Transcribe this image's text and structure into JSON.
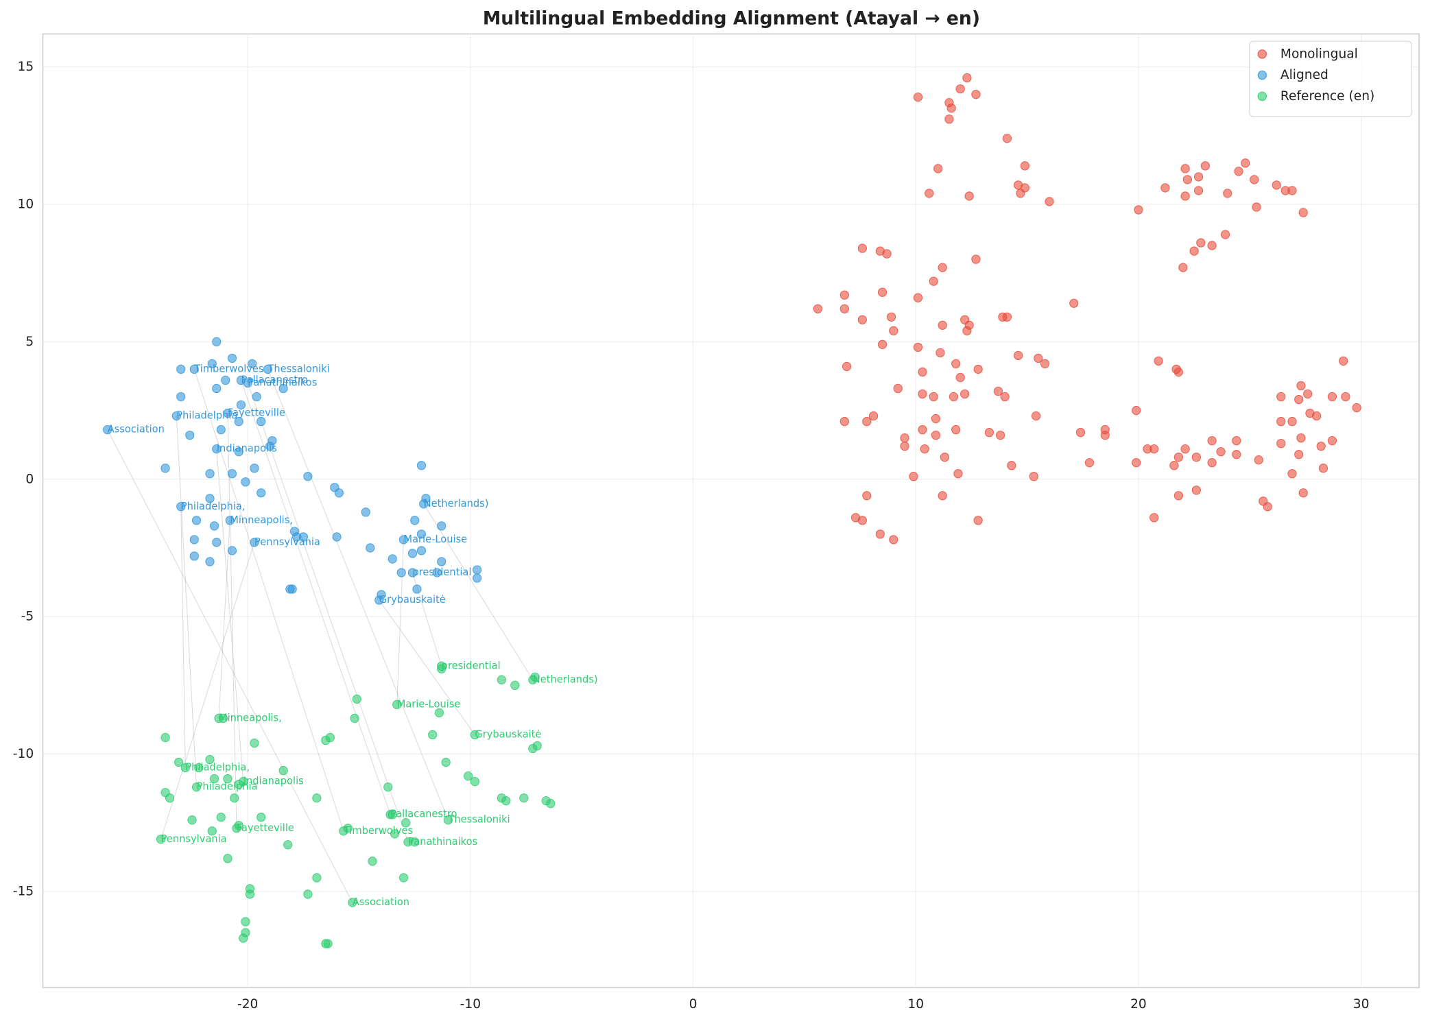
{
  "chart_data": {
    "type": "scatter",
    "title": "Multilingual Embedding Alignment (Atayal → en)",
    "xlim": [
      -29.2,
      32.6
    ],
    "ylim": [
      -18.5,
      16.2
    ],
    "xticks": [
      -20,
      -10,
      0,
      10,
      20,
      30
    ],
    "yticks": [
      15,
      10,
      5,
      0,
      -5,
      -10,
      -15
    ],
    "grid": true,
    "legend": "upper right",
    "series": [
      {
        "name": "Monolingual",
        "color": "#e74c3c",
        "x": [
          10.1,
          12.3,
          12.0,
          11.5,
          12.7,
          11.6,
          11.5,
          14.1,
          11.0,
          14.9,
          10.6,
          12.4,
          14.6,
          14.9,
          14.7,
          16.0,
          20.0,
          21.2,
          22.1,
          22.7,
          23.0,
          22.2,
          22.1,
          22.7,
          24.0,
          24.5,
          24.8,
          25.2,
          25.3,
          26.2,
          26.6,
          26.9,
          27.4,
          23.9,
          23.3,
          22.8,
          22.5,
          22.0,
          7.6,
          8.4,
          8.7,
          12.7,
          11.2,
          10.8,
          5.6,
          6.8,
          6.8,
          8.5,
          10.1,
          17.1,
          13.9,
          14.1,
          7.6,
          8.9,
          12.2,
          12.4,
          11.2,
          12.3,
          9.0,
          10.1,
          8.5,
          11.1,
          14.6,
          15.5,
          15.8,
          11.8,
          20.9,
          21.7,
          21.8,
          29.2,
          6.9,
          12.8,
          10.3,
          12.0,
          9.2,
          13.7,
          14.0,
          10.3,
          10.8,
          11.7,
          12.2,
          27.3,
          26.4,
          27.6,
          28.7,
          29.3,
          27.2,
          29.8,
          19.9,
          8.1,
          15.4,
          10.9,
          6.8,
          7.8,
          27.7,
          28.0,
          26.4,
          26.9,
          10.3,
          11.8,
          10.9,
          13.3,
          13.8,
          17.4,
          18.5,
          18.5,
          9.5,
          27.3,
          28.7,
          26.4,
          28.2,
          23.3,
          24.4,
          9.5,
          10.4,
          20.4,
          20.7,
          22.1,
          23.7,
          24.4,
          27.2,
          25.4,
          11.3,
          21.8,
          22.6,
          17.8,
          19.9,
          23.3,
          14.3,
          21.6,
          28.3,
          11.9,
          26.9,
          9.9,
          15.3,
          7.8,
          11.2,
          21.8,
          22.6,
          27.4,
          25.6,
          25.8,
          7.3,
          7.6,
          20.7,
          12.8,
          8.4,
          9.0
        ],
        "values": [
          13.9,
          14.6,
          14.2,
          13.7,
          14.0,
          13.5,
          13.1,
          12.4,
          11.3,
          11.4,
          10.4,
          10.3,
          10.7,
          10.6,
          10.4,
          10.1,
          9.8,
          10.6,
          11.3,
          11.0,
          11.4,
          10.9,
          10.3,
          10.5,
          10.4,
          11.2,
          11.5,
          10.9,
          9.9,
          10.7,
          10.5,
          10.5,
          9.7,
          8.9,
          8.5,
          8.6,
          8.3,
          7.7,
          8.4,
          8.3,
          8.2,
          8.0,
          7.7,
          7.2,
          6.2,
          6.2,
          6.7,
          6.8,
          6.6,
          6.4,
          5.9,
          5.9,
          5.8,
          5.9,
          5.8,
          5.6,
          5.6,
          5.4,
          5.4,
          4.8,
          4.9,
          4.6,
          4.5,
          4.4,
          4.2,
          4.2,
          4.3,
          4.0,
          3.9,
          4.3,
          4.1,
          4.0,
          3.9,
          3.7,
          3.3,
          3.2,
          3.0,
          3.1,
          3.0,
          3.0,
          3.1,
          3.4,
          3.0,
          3.1,
          3.0,
          3.0,
          2.9,
          2.6,
          2.5,
          2.3,
          2.3,
          2.2,
          2.1,
          2.1,
          2.4,
          2.3,
          2.1,
          2.1,
          1.8,
          1.8,
          1.6,
          1.7,
          1.6,
          1.7,
          1.8,
          1.6,
          1.5,
          1.5,
          1.4,
          1.3,
          1.2,
          1.4,
          1.4,
          1.2,
          1.1,
          1.1,
          1.1,
          1.1,
          1.0,
          0.9,
          0.9,
          0.7,
          0.8,
          0.8,
          0.8,
          0.6,
          0.6,
          0.6,
          0.5,
          0.5,
          0.4,
          0.2,
          0.2,
          0.1,
          0.1,
          -0.6,
          -0.6,
          -0.6,
          -0.4,
          -0.5,
          -0.8,
          -1.0,
          -1.4,
          -1.5,
          -1.4,
          -1.5,
          -2.0,
          -2.2
        ]
      },
      {
        "name": "Aligned",
        "color": "#3498db",
        "x": [
          -21.4,
          -20.7,
          -19.8,
          -21.6,
          -23.0,
          -22.4,
          -19.1,
          -21.0,
          -20.3,
          -20.0,
          -18.4,
          -21.4,
          -23.0,
          -19.6,
          -20.3,
          -20.9,
          -23.2,
          -20.4,
          -19.4,
          -26.3,
          -21.2,
          -22.6,
          -18.9,
          -19.0,
          -21.4,
          -20.4,
          -23.7,
          -19.7,
          -12.2,
          -21.7,
          -20.7,
          -17.3,
          -20.1,
          -16.1,
          -15.9,
          -19.4,
          -21.7,
          -12.0,
          -12.1,
          -23.0,
          -14.7,
          -22.3,
          -20.8,
          -12.5,
          -21.5,
          -11.3,
          -17.9,
          -17.8,
          -17.5,
          -16.0,
          -12.2,
          -22.4,
          -13.0,
          -21.4,
          -19.7,
          -14.5,
          -12.2,
          -20.7,
          -22.4,
          -12.6,
          -13.5,
          -21.7,
          -11.3,
          -13.1,
          -12.6,
          -11.5,
          -9.7,
          -9.7,
          -18.1,
          -18.0,
          -12.4,
          -14.0,
          -14.1
        ],
        "values": [
          5.0,
          4.4,
          4.2,
          4.2,
          4.0,
          4.0,
          4.0,
          3.6,
          3.6,
          3.5,
          3.3,
          3.3,
          3.0,
          3.0,
          2.7,
          2.4,
          2.3,
          2.1,
          2.1,
          1.8,
          1.8,
          1.6,
          1.4,
          1.2,
          1.1,
          1.0,
          0.4,
          0.4,
          0.5,
          0.2,
          0.2,
          0.1,
          -0.1,
          -0.3,
          -0.5,
          -0.5,
          -0.7,
          -0.7,
          -0.9,
          -1.0,
          -1.2,
          -1.5,
          -1.5,
          -1.5,
          -1.7,
          -1.7,
          -1.9,
          -2.1,
          -2.1,
          -2.1,
          -2.0,
          -2.2,
          -2.2,
          -2.3,
          -2.3,
          -2.5,
          -2.6,
          -2.6,
          -2.8,
          -2.7,
          -2.9,
          -3.0,
          -3.0,
          -3.4,
          -3.4,
          -3.4,
          -3.3,
          -3.6,
          -4.0,
          -4.0,
          -4.0,
          -4.2,
          -4.4
        ]
      },
      {
        "name": "Reference (en)",
        "color": "#2ecc71",
        "x": [
          -11.3,
          -11.3,
          -8.6,
          -8.0,
          -7.2,
          -7.1,
          -15.1,
          -13.3,
          -11.4,
          -15.2,
          -21.3,
          -21.1,
          -23.7,
          -16.3,
          -16.5,
          -19.7,
          -11.7,
          -9.8,
          -7.0,
          -7.2,
          -21.7,
          -23.1,
          -11.1,
          -22.8,
          -22.2,
          -18.4,
          -10.1,
          -9.8,
          -20.9,
          -21.5,
          -20.2,
          -20.4,
          -22.3,
          -23.7,
          -13.7,
          -23.5,
          -20.6,
          -16.9,
          -8.6,
          -8.4,
          -7.6,
          -6.6,
          -6.4,
          -21.2,
          -19.4,
          -13.6,
          -13.5,
          -11.0,
          -22.5,
          -20.4,
          -20.5,
          -21.6,
          -12.9,
          -15.7,
          -15.5,
          -13.4,
          -23.9,
          -12.8,
          -12.5,
          -18.2,
          -20.9,
          -14.4,
          -16.9,
          -13.0,
          -19.9,
          -19.9,
          -17.3,
          -15.3,
          -20.1,
          -20.1,
          -20.2,
          -16.5,
          -16.4
        ],
        "values": [
          -6.8,
          -6.9,
          -7.3,
          -7.5,
          -7.3,
          -7.2,
          -8.0,
          -8.2,
          -8.5,
          -8.7,
          -8.7,
          -8.7,
          -9.4,
          -9.4,
          -9.5,
          -9.6,
          -9.3,
          -9.3,
          -9.7,
          -9.8,
          -10.2,
          -10.3,
          -10.3,
          -10.5,
          -10.5,
          -10.6,
          -10.8,
          -11.0,
          -10.9,
          -10.9,
          -11.0,
          -11.1,
          -11.2,
          -11.4,
          -11.2,
          -11.6,
          -11.6,
          -11.6,
          -11.6,
          -11.7,
          -11.6,
          -11.7,
          -11.8,
          -12.3,
          -12.3,
          -12.2,
          -12.2,
          -12.4,
          -12.4,
          -12.6,
          -12.7,
          -12.8,
          -12.5,
          -12.8,
          -12.7,
          -12.9,
          -13.1,
          -13.2,
          -13.2,
          -13.3,
          -13.8,
          -13.9,
          -14.5,
          -14.5,
          -14.9,
          -15.1,
          -15.1,
          -15.4,
          -16.1,
          -16.5,
          -16.7,
          -16.9,
          -16.9
        ]
      }
    ],
    "annotations": [
      {
        "text": "Association",
        "aligned": [
          -26.3,
          1.8
        ],
        "reference": [
          -15.3,
          -15.4
        ]
      },
      {
        "text": "Timberwolves",
        "aligned": [
          -22.4,
          4.0
        ],
        "reference": [
          -15.7,
          -12.8
        ]
      },
      {
        "text": "Thessaloniki",
        "aligned": [
          -19.1,
          4.0
        ],
        "reference": [
          -11.0,
          -12.4
        ]
      },
      {
        "text": "Pallacanestro",
        "aligned": [
          -20.3,
          3.6
        ],
        "reference": [
          -13.6,
          -12.2
        ]
      },
      {
        "text": "Panathinaikos",
        "aligned": [
          -20.0,
          3.5
        ],
        "reference": [
          -12.8,
          -13.2
        ]
      },
      {
        "text": "Philadelphia",
        "aligned": [
          -23.2,
          2.3
        ],
        "reference": [
          -22.3,
          -11.2
        ]
      },
      {
        "text": "Fayetteville",
        "aligned": [
          -20.9,
          2.4
        ],
        "reference": [
          -20.5,
          -12.7
        ]
      },
      {
        "text": "Indianapolis",
        "aligned": [
          -21.4,
          1.1
        ],
        "reference": [
          -20.2,
          -11.0
        ]
      },
      {
        "text": "Philadelphia,",
        "aligned": [
          -23.0,
          -1.0
        ],
        "reference": [
          -22.8,
          -10.5
        ]
      },
      {
        "text": "Minneapolis,",
        "aligned": [
          -20.8,
          -1.5
        ],
        "reference": [
          -21.3,
          -8.7
        ]
      },
      {
        "text": "Pennsylvania",
        "aligned": [
          -19.7,
          -2.3
        ],
        "reference": [
          -23.9,
          -13.1
        ]
      },
      {
        "text": "Netherlands)",
        "aligned": [
          -12.1,
          -0.9
        ],
        "reference": [
          -7.2,
          -7.3
        ]
      },
      {
        "text": "Marie-Louise",
        "aligned": [
          -13.0,
          -2.2
        ],
        "reference": [
          -13.3,
          -8.2
        ]
      },
      {
        "text": "presidential",
        "aligned": [
          -12.6,
          -3.4
        ],
        "reference": [
          -11.3,
          -6.8
        ]
      },
      {
        "text": "Grybauskaitė",
        "aligned": [
          -14.1,
          -4.4
        ],
        "reference": [
          -9.8,
          -9.3
        ]
      }
    ]
  }
}
